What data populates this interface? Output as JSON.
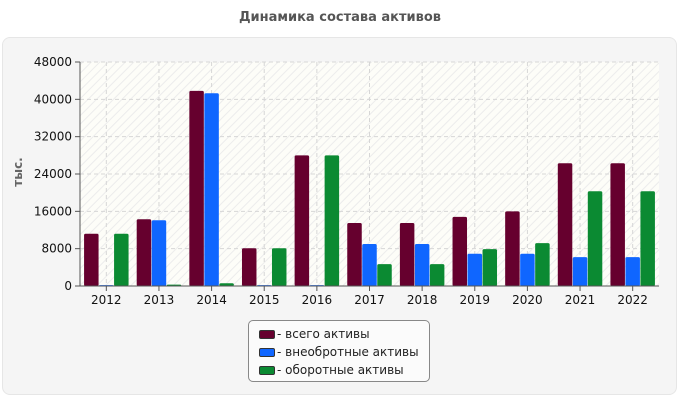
{
  "chart_data": {
    "type": "bar",
    "title": "Динамика состава активов",
    "ylabel": "тыс.",
    "xlabel": "",
    "categories": [
      "2012",
      "2013",
      "2014",
      "2015",
      "2016",
      "2017",
      "2018",
      "2019",
      "2020",
      "2021",
      "2022"
    ],
    "ylim": [
      0,
      48000
    ],
    "yticks": [
      "0",
      "8000",
      "16000",
      "24000",
      "32000",
      "40000",
      "48000"
    ],
    "grid": true,
    "legend_position": "bottom-center",
    "series": [
      {
        "name": "- всего активы",
        "color": "#66002e",
        "values": [
          11200,
          14300,
          41800,
          8100,
          28000,
          13500,
          13500,
          14800,
          16000,
          26300,
          26300
        ]
      },
      {
        "name": "- внеобротные активы",
        "color": "#0f66ff",
        "values": [
          200,
          14100,
          41300,
          200,
          200,
          9000,
          9000,
          6900,
          6900,
          6200,
          6200
        ]
      },
      {
        "name": "- оборотные активы",
        "color": "#0b8a32",
        "values": [
          11200,
          300,
          600,
          8100,
          28000,
          4700,
          4700,
          7900,
          9200,
          20300,
          20300
        ]
      }
    ]
  }
}
